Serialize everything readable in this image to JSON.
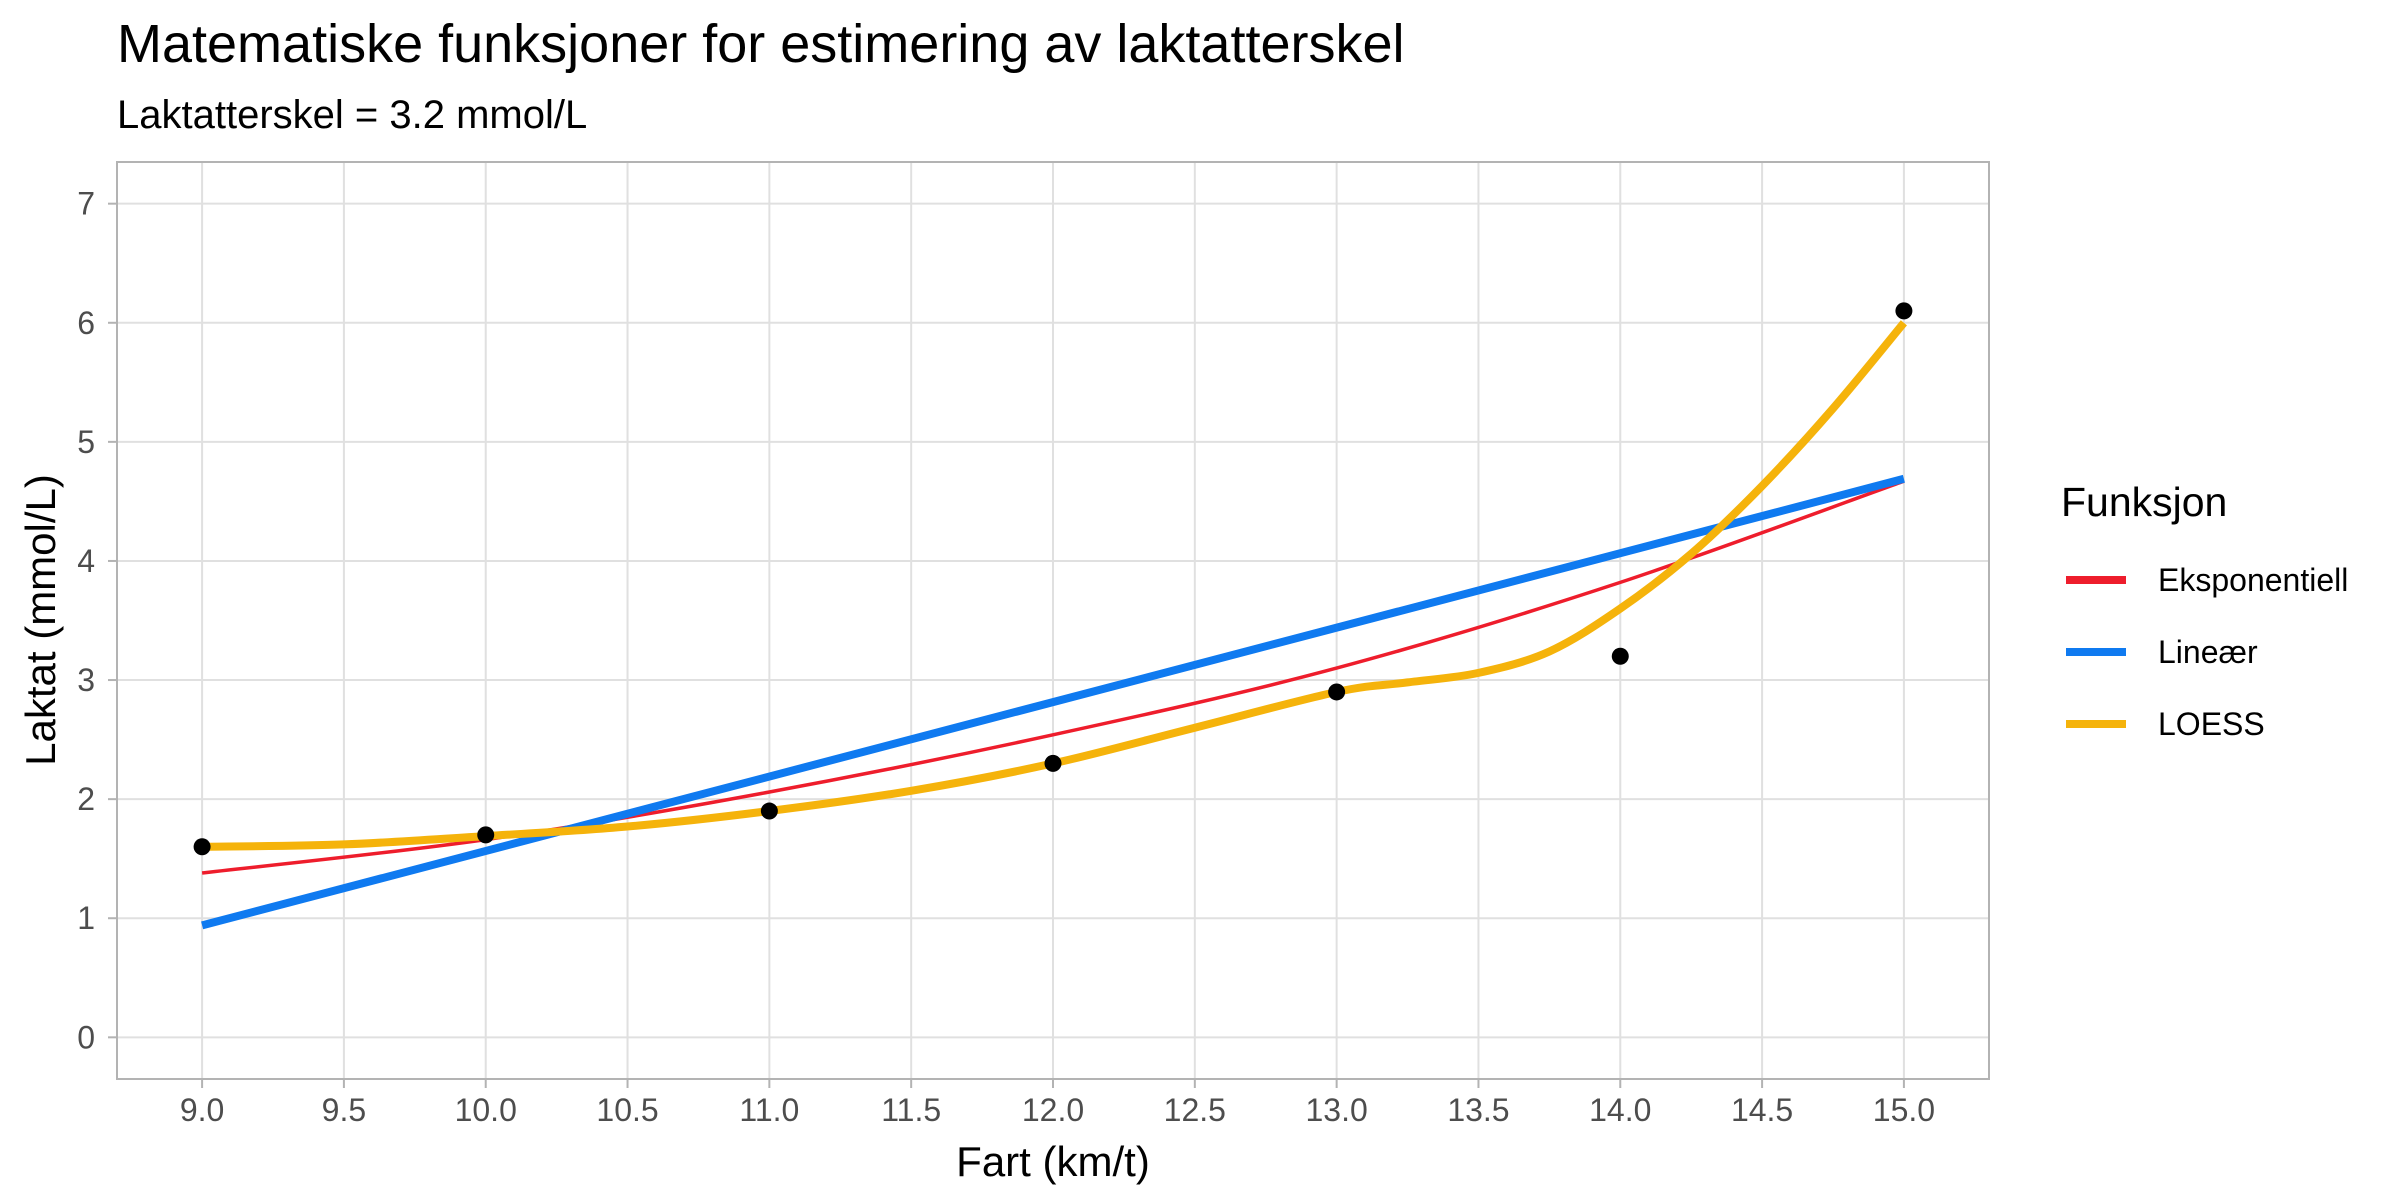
{
  "chart_data": {
    "type": "line",
    "title": "Matematiske funksjoner for estimering av laktatterskel",
    "subtitle": "Laktatterskel = 3.2 mmol/L",
    "xlabel": "Fart (km/t)",
    "ylabel": "Laktat (mmol/L)",
    "xlim": [
      8.7,
      15.3
    ],
    "ylim": [
      -0.35,
      7.35
    ],
    "x_ticks": [
      "9.0",
      "9.5",
      "10.0",
      "10.5",
      "11.0",
      "11.5",
      "12.0",
      "12.5",
      "13.0",
      "13.5",
      "14.0",
      "14.5",
      "15.0"
    ],
    "y_ticks": [
      "0",
      "1",
      "2",
      "3",
      "4",
      "5",
      "6",
      "7"
    ],
    "grid": true,
    "legend": {
      "title": "Funksjon",
      "position": "right"
    },
    "points": {
      "x": [
        9,
        10,
        11,
        12,
        13,
        14,
        15
      ],
      "y": [
        1.6,
        1.7,
        1.9,
        2.3,
        2.9,
        3.2,
        6.1
      ],
      "color": "#000000"
    },
    "series": [
      {
        "name": "Eksponentiell",
        "color": "#ee1d2c",
        "line_weight": "thin",
        "x": [
          9,
          10,
          11,
          12,
          13,
          14,
          15
        ],
        "y": [
          1.38,
          1.66,
          2.06,
          2.54,
          3.1,
          3.82,
          4.67
        ]
      },
      {
        "name": "Lineær",
        "color": "#0f7af0",
        "line_weight": "thick",
        "x": [
          9,
          15
        ],
        "y": [
          0.94,
          4.69
        ]
      },
      {
        "name": "LOESS",
        "color": "#f5b30b",
        "line_weight": "thick",
        "x": [
          9,
          9.5,
          10,
          10.5,
          11,
          11.5,
          12,
          12.5,
          13,
          13.25,
          13.5,
          13.75,
          14,
          14.25,
          14.5,
          14.75,
          15
        ],
        "y": [
          1.6,
          1.62,
          1.69,
          1.77,
          1.9,
          2.07,
          2.3,
          2.6,
          2.9,
          2.98,
          3.06,
          3.24,
          3.6,
          4.06,
          4.63,
          5.28,
          6.0
        ]
      }
    ]
  }
}
